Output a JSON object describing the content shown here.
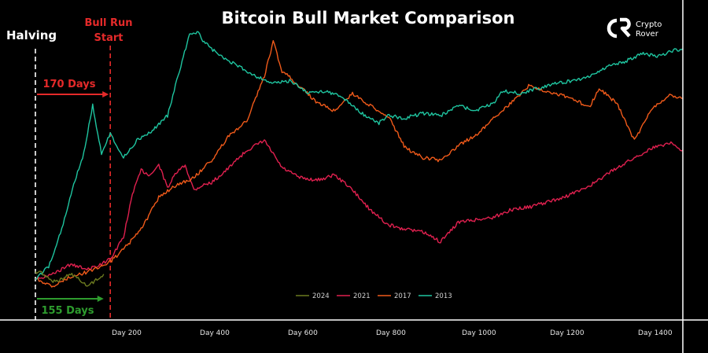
{
  "colors": {
    "background": "#000000",
    "s2024": "#6b7a1f",
    "s2021": "#e0204f",
    "s2017": "#f05a1a",
    "s2013": "#1fc5a0",
    "bull_run_line": "#e52a2a",
    "halving_line": "#ffffff",
    "days_red": "#e52a2a",
    "days_green": "#2e9c2e"
  },
  "logo": {
    "line1": "Crypto",
    "line2": "Rover",
    "icon": "crypto-rover-cr-icon"
  },
  "annotations": {
    "halving": "Halving",
    "bull_run_line1": "Bull Run",
    "bull_run_line2": "Start",
    "days_red": "170 Days",
    "days_green": "155 Days"
  },
  "chart_data": {
    "type": "line",
    "title": "Bitcoin Bull Market Comparison",
    "xlabel": "",
    "ylabel": "",
    "x_unit": "days since halving",
    "xlim": [
      0,
      1470
    ],
    "ylim": [
      0,
      1
    ],
    "y_scale_note": "relative performance, no y-axis labels shown",
    "x_ticks": [
      {
        "value": 200,
        "label": "Day 200"
      },
      {
        "value": 400,
        "label": "Day 400"
      },
      {
        "value": 600,
        "label": "Day 600"
      },
      {
        "value": 800,
        "label": "Day 800"
      },
      {
        "value": 1000,
        "label": "Day 1000"
      },
      {
        "value": 1200,
        "label": "Day 1200"
      },
      {
        "value": 1400,
        "label": "Day 1400"
      }
    ],
    "vlines": [
      {
        "x": 0,
        "label": "Halving"
      },
      {
        "x": 170,
        "label": "Bull Run Start"
      }
    ],
    "legend_position": "bottom-center",
    "grid": false,
    "series": [
      {
        "name": "2024",
        "x": [
          0,
          20,
          40,
          60,
          80,
          100,
          120,
          140,
          155
        ],
        "y": [
          0.03,
          0.02,
          -0.01,
          0.0,
          0.02,
          0.0,
          -0.03,
          0.0,
          0.02
        ]
      },
      {
        "name": "2021",
        "x": [
          0,
          40,
          80,
          120,
          150,
          170,
          200,
          220,
          240,
          260,
          280,
          300,
          320,
          340,
          360,
          380,
          400,
          440,
          480,
          520,
          560,
          600,
          640,
          680,
          720,
          760,
          800,
          840,
          880,
          920,
          960,
          1000,
          1040,
          1080,
          1120,
          1160,
          1200,
          1240,
          1280,
          1320,
          1360,
          1400,
          1440,
          1470
        ],
        "y": [
          0.0,
          0.02,
          0.06,
          0.04,
          0.06,
          0.08,
          0.17,
          0.34,
          0.44,
          0.42,
          0.46,
          0.37,
          0.43,
          0.46,
          0.36,
          0.38,
          0.39,
          0.45,
          0.52,
          0.56,
          0.45,
          0.41,
          0.4,
          0.42,
          0.36,
          0.28,
          0.22,
          0.2,
          0.19,
          0.15,
          0.23,
          0.24,
          0.25,
          0.28,
          0.29,
          0.31,
          0.33,
          0.36,
          0.4,
          0.45,
          0.49,
          0.53,
          0.55,
          0.52
        ]
      },
      {
        "name": "2017",
        "x": [
          0,
          40,
          80,
          120,
          170,
          200,
          240,
          280,
          320,
          360,
          400,
          440,
          480,
          520,
          540,
          560,
          600,
          640,
          680,
          720,
          760,
          800,
          840,
          880,
          920,
          960,
          1000,
          1040,
          1080,
          1120,
          1160,
          1200,
          1240,
          1260,
          1280,
          1320,
          1360,
          1400,
          1440,
          1470
        ],
        "y": [
          0.0,
          -0.03,
          0.01,
          0.03,
          0.07,
          0.12,
          0.2,
          0.33,
          0.38,
          0.41,
          0.48,
          0.58,
          0.64,
          0.82,
          0.96,
          0.84,
          0.78,
          0.71,
          0.68,
          0.75,
          0.7,
          0.66,
          0.53,
          0.49,
          0.48,
          0.54,
          0.58,
          0.65,
          0.71,
          0.78,
          0.76,
          0.74,
          0.71,
          0.7,
          0.77,
          0.71,
          0.56,
          0.69,
          0.74,
          0.73
        ]
      },
      {
        "name": "2013",
        "x": [
          0,
          30,
          60,
          90,
          110,
          130,
          150,
          170,
          200,
          230,
          260,
          300,
          330,
          350,
          370,
          380,
          400,
          420,
          460,
          500,
          540,
          580,
          620,
          660,
          700,
          740,
          780,
          800,
          840,
          880,
          920,
          960,
          1000,
          1040,
          1060,
          1100,
          1140,
          1180,
          1220,
          1260,
          1300,
          1340,
          1380,
          1420,
          1440,
          1470
        ],
        "y": [
          0.0,
          0.05,
          0.2,
          0.4,
          0.51,
          0.7,
          0.51,
          0.59,
          0.49,
          0.56,
          0.59,
          0.66,
          0.86,
          0.99,
          1.0,
          0.96,
          0.93,
          0.9,
          0.86,
          0.82,
          0.79,
          0.8,
          0.75,
          0.76,
          0.73,
          0.67,
          0.63,
          0.66,
          0.65,
          0.67,
          0.66,
          0.7,
          0.68,
          0.71,
          0.76,
          0.75,
          0.77,
          0.79,
          0.8,
          0.82,
          0.86,
          0.88,
          0.91,
          0.9,
          0.92,
          0.93
        ]
      }
    ]
  }
}
